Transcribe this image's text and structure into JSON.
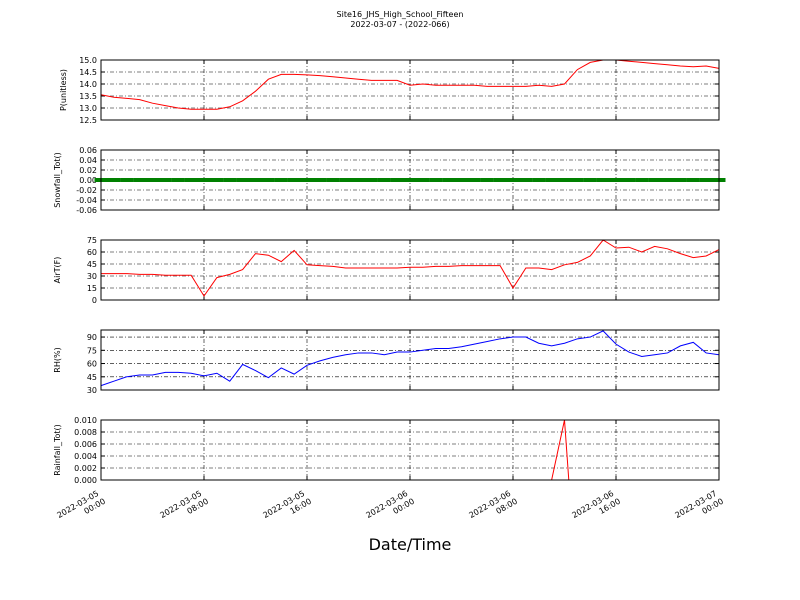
{
  "chart_data": [
    {
      "type": "line",
      "title": "Site16_JHS_High_School_Fifteen",
      "subtitle": "2022-03-07 - (2022-066)",
      "ylabel": "P(unitless)",
      "color": "#ff0000",
      "xlim": [
        "2022-03-05 00:00",
        "2022-03-07 00:00"
      ],
      "ylim": [
        12.5,
        15.0
      ],
      "yticks": [
        12.5,
        {
          "value": 13,
          "label": "13.0"
        },
        13.5,
        {
          "value": 14,
          "label": "14.0"
        },
        14.5,
        {
          "value": 15,
          "label": "15.0"
        }
      ],
      "grid": true,
      "x": [
        "2022-03-05 00:00",
        "2022-03-05 01:00",
        "2022-03-05 02:00",
        "2022-03-05 03:00",
        "2022-03-05 04:00",
        "2022-03-05 05:00",
        "2022-03-05 06:00",
        "2022-03-05 07:00",
        "2022-03-05 08:00",
        "2022-03-05 09:00",
        "2022-03-05 10:00",
        "2022-03-05 11:00",
        "2022-03-05 12:00",
        "2022-03-05 13:00",
        "2022-03-05 14:00",
        "2022-03-05 15:00",
        "2022-03-05 16:00",
        "2022-03-05 17:00",
        "2022-03-05 18:00",
        "2022-03-05 19:00",
        "2022-03-05 20:00",
        "2022-03-05 21:00",
        "2022-03-05 22:00",
        "2022-03-05 23:00",
        "2022-03-06 00:00",
        "2022-03-06 01:00",
        "2022-03-06 02:00",
        "2022-03-06 03:00",
        "2022-03-06 04:00",
        "2022-03-06 05:00",
        "2022-03-06 06:00",
        "2022-03-06 07:00",
        "2022-03-06 08:00",
        "2022-03-06 09:00",
        "2022-03-06 10:00",
        "2022-03-06 11:00",
        "2022-03-06 12:00",
        "2022-03-06 13:00",
        "2022-03-06 14:00",
        "2022-03-06 15:00",
        "2022-03-06 16:00",
        "2022-03-06 17:00",
        "2022-03-06 18:00",
        "2022-03-06 19:00",
        "2022-03-06 20:00",
        "2022-03-06 21:00",
        "2022-03-06 22:00",
        "2022-03-06 23:00",
        "2022-03-07 00:00"
      ],
      "values": [
        13.55,
        13.45,
        13.4,
        13.35,
        13.2,
        13.1,
        13.0,
        12.95,
        12.95,
        12.95,
        13.05,
        13.3,
        13.7,
        14.2,
        14.4,
        14.4,
        14.38,
        14.35,
        14.3,
        14.25,
        14.2,
        14.15,
        14.15,
        14.15,
        13.95,
        14.0,
        13.95,
        13.95,
        13.95,
        13.95,
        13.9,
        13.9,
        13.9,
        13.9,
        13.95,
        13.9,
        14.0,
        14.6,
        14.9,
        15.0,
        15.0,
        14.95,
        14.9,
        14.85,
        14.8,
        14.75,
        14.72,
        14.75,
        14.65
      ]
    },
    {
      "type": "scatter",
      "ylabel": "Snowfall_Tot()",
      "color": "#008000",
      "xlim": [
        "2022-03-05 00:00",
        "2022-03-07 00:00"
      ],
      "ylim": [
        -0.06,
        0.06
      ],
      "yticks": [
        -0.06,
        -0.04,
        -0.02,
        {
          "value": 0,
          "label": "0.00"
        },
        0.02,
        0.04,
        0.06
      ],
      "grid": true,
      "x": [
        "2022-03-05 00:00",
        "2022-03-05 01:00",
        "2022-03-05 02:00",
        "2022-03-05 03:00",
        "2022-03-05 04:00",
        "2022-03-05 05:00",
        "2022-03-05 06:00",
        "2022-03-05 07:00",
        "2022-03-05 08:00",
        "2022-03-05 09:00",
        "2022-03-05 10:00",
        "2022-03-05 11:00",
        "2022-03-05 12:00",
        "2022-03-05 13:00",
        "2022-03-05 14:00",
        "2022-03-05 15:00",
        "2022-03-05 16:00",
        "2022-03-05 17:00",
        "2022-03-05 18:00",
        "2022-03-05 19:00",
        "2022-03-05 20:00",
        "2022-03-05 21:00",
        "2022-03-05 22:00",
        "2022-03-05 23:00",
        "2022-03-06 00:00",
        "2022-03-06 01:00",
        "2022-03-06 02:00",
        "2022-03-06 03:00",
        "2022-03-06 04:00",
        "2022-03-06 05:00",
        "2022-03-06 06:00",
        "2022-03-06 07:00",
        "2022-03-06 08:00",
        "2022-03-06 09:00",
        "2022-03-06 10:00",
        "2022-03-06 11:00",
        "2022-03-06 12:00",
        "2022-03-06 13:00",
        "2022-03-06 14:00",
        "2022-03-06 15:00",
        "2022-03-06 16:00",
        "2022-03-06 17:00",
        "2022-03-06 18:00",
        "2022-03-06 19:00",
        "2022-03-06 20:00",
        "2022-03-06 21:00",
        "2022-03-06 22:00",
        "2022-03-06 23:00",
        "2022-03-07 00:00"
      ],
      "values": [
        0,
        0,
        0,
        0,
        0,
        0,
        0,
        0,
        0,
        0,
        0,
        0,
        0,
        0,
        0,
        0,
        0,
        0,
        0,
        0,
        0,
        0,
        0,
        0,
        0,
        0,
        0,
        0,
        0,
        0,
        0,
        0,
        0,
        0,
        0,
        0,
        0,
        0,
        0,
        0,
        0,
        0,
        0,
        0,
        0,
        0,
        0,
        0,
        0
      ]
    },
    {
      "type": "line",
      "ylabel": "AirT(F)",
      "color": "#ff0000",
      "xlim": [
        "2022-03-05 00:00",
        "2022-03-07 00:00"
      ],
      "ylim": [
        0,
        75
      ],
      "yticks": [
        0,
        15,
        30,
        45,
        60,
        75
      ],
      "grid": true,
      "x": [
        "2022-03-05 00:00",
        "2022-03-05 01:00",
        "2022-03-05 02:00",
        "2022-03-05 03:00",
        "2022-03-05 04:00",
        "2022-03-05 05:00",
        "2022-03-05 06:00",
        "2022-03-05 07:00",
        "2022-03-05 08:00",
        "2022-03-05 09:00",
        "2022-03-05 10:00",
        "2022-03-05 11:00",
        "2022-03-05 12:00",
        "2022-03-05 13:00",
        "2022-03-05 14:00",
        "2022-03-05 15:00",
        "2022-03-05 16:00",
        "2022-03-05 17:00",
        "2022-03-05 18:00",
        "2022-03-05 19:00",
        "2022-03-05 20:00",
        "2022-03-05 21:00",
        "2022-03-05 22:00",
        "2022-03-05 23:00",
        "2022-03-06 00:00",
        "2022-03-06 01:00",
        "2022-03-06 02:00",
        "2022-03-06 03:00",
        "2022-03-06 04:00",
        "2022-03-06 05:00",
        "2022-03-06 06:00",
        "2022-03-06 07:00",
        "2022-03-06 08:00",
        "2022-03-06 09:00",
        "2022-03-06 10:00",
        "2022-03-06 11:00",
        "2022-03-06 12:00",
        "2022-03-06 13:00",
        "2022-03-06 14:00",
        "2022-03-06 15:00",
        "2022-03-06 16:00",
        "2022-03-06 17:00",
        "2022-03-06 18:00",
        "2022-03-06 19:00",
        "2022-03-06 20:00",
        "2022-03-06 21:00",
        "2022-03-06 22:00",
        "2022-03-06 23:00",
        "2022-03-07 00:00"
      ],
      "values": [
        33,
        33,
        33,
        32,
        32,
        31,
        31,
        31,
        5,
        28,
        32,
        38,
        58,
        56,
        48,
        62,
        44,
        43,
        42,
        40,
        40,
        40,
        40,
        40,
        41,
        41,
        42,
        42,
        43,
        43,
        43,
        43,
        15,
        40,
        40,
        38,
        44,
        47,
        55,
        75,
        65,
        66,
        60,
        67,
        64,
        58,
        53,
        55,
        63
      ]
    },
    {
      "type": "line",
      "ylabel": "RH(%)",
      "color": "#0000ff",
      "xlim": [
        "2022-03-05 00:00",
        "2022-03-07 00:00"
      ],
      "ylim": [
        30,
        98
      ],
      "yticks": [
        30,
        45,
        60,
        75,
        90
      ],
      "grid": true,
      "x": [
        "2022-03-05 00:00",
        "2022-03-05 01:00",
        "2022-03-05 02:00",
        "2022-03-05 03:00",
        "2022-03-05 04:00",
        "2022-03-05 05:00",
        "2022-03-05 06:00",
        "2022-03-05 07:00",
        "2022-03-05 08:00",
        "2022-03-05 09:00",
        "2022-03-05 10:00",
        "2022-03-05 11:00",
        "2022-03-05 12:00",
        "2022-03-05 13:00",
        "2022-03-05 14:00",
        "2022-03-05 15:00",
        "2022-03-05 16:00",
        "2022-03-05 17:00",
        "2022-03-05 18:00",
        "2022-03-05 19:00",
        "2022-03-05 20:00",
        "2022-03-05 21:00",
        "2022-03-05 22:00",
        "2022-03-05 23:00",
        "2022-03-06 00:00",
        "2022-03-06 01:00",
        "2022-03-06 02:00",
        "2022-03-06 03:00",
        "2022-03-06 04:00",
        "2022-03-06 05:00",
        "2022-03-06 06:00",
        "2022-03-06 07:00",
        "2022-03-06 08:00",
        "2022-03-06 09:00",
        "2022-03-06 10:00",
        "2022-03-06 11:00",
        "2022-03-06 12:00",
        "2022-03-06 13:00",
        "2022-03-06 14:00",
        "2022-03-06 15:00",
        "2022-03-06 16:00",
        "2022-03-06 17:00",
        "2022-03-06 18:00",
        "2022-03-06 19:00",
        "2022-03-06 20:00",
        "2022-03-06 21:00",
        "2022-03-06 22:00",
        "2022-03-06 23:00",
        "2022-03-07 00:00"
      ],
      "values": [
        35,
        40,
        45,
        47,
        47,
        50,
        50,
        49,
        46,
        49,
        40,
        59,
        52,
        44,
        55,
        48,
        58,
        63,
        67,
        70,
        72,
        72,
        70,
        73,
        73,
        75,
        77,
        77,
        79,
        82,
        85,
        88,
        90,
        90,
        83,
        80,
        83,
        88,
        90,
        97,
        82,
        73,
        68,
        70,
        72,
        80,
        84,
        72,
        70
      ]
    },
    {
      "type": "line",
      "ylabel": "Rainfall_Tot()",
      "xlabel": "Date/Time",
      "color": "#ff0000",
      "xlim": [
        "2022-03-05 00:00",
        "2022-03-07 00:00"
      ],
      "ylim": [
        0,
        0.01
      ],
      "yticks": [
        {
          "value": 0,
          "label": "0.000"
        },
        0.002,
        0.004,
        0.006,
        0.008,
        {
          "value": 0.01,
          "label": "0.010"
        }
      ],
      "grid": true,
      "xticks": [
        "2022-03-05 00:00",
        "2022-03-05 08:00",
        "2022-03-05 16:00",
        "2022-03-06 00:00",
        "2022-03-06 08:00",
        "2022-03-06 16:00",
        "2022-03-07 00:00"
      ],
      "x": [
        "2022-03-05 00:00",
        "2022-03-06 11:00",
        "2022-03-06 12:00",
        "2022-03-06 12:20",
        "2022-03-07 00:00"
      ],
      "values": [
        0,
        0,
        0.01,
        0,
        0
      ]
    }
  ]
}
